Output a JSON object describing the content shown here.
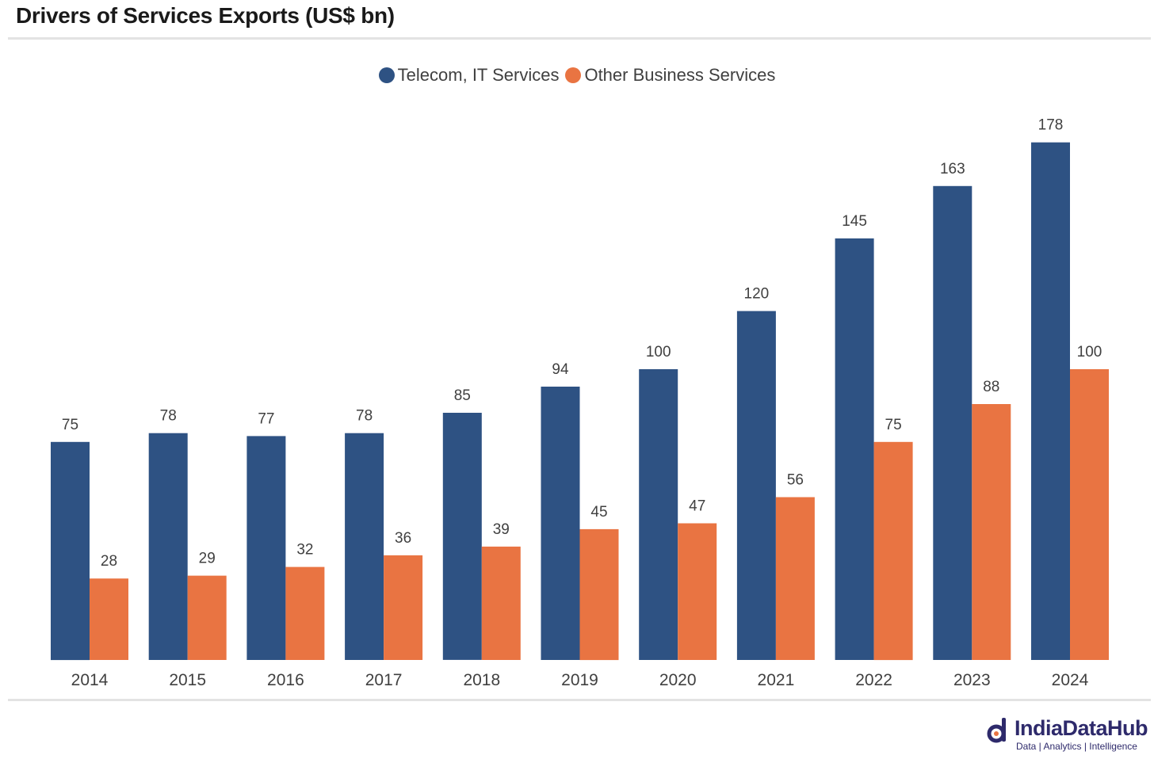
{
  "title": "Drivers of Services Exports (US$ bn)",
  "brand": {
    "name": "IndiaDataHub",
    "tagline": "Data | Analytics | Intelligence",
    "color": "#2e2a6b"
  },
  "chart_data": {
    "type": "bar",
    "title": "Drivers of Services Exports (US$ bn)",
    "xlabel": "",
    "ylabel": "",
    "ylim": [
      0,
      190
    ],
    "grid": false,
    "legend_position": "top-center",
    "categories": [
      "2014",
      "2015",
      "2016",
      "2017",
      "2018",
      "2019",
      "2020",
      "2021",
      "2022",
      "2023",
      "2024"
    ],
    "series": [
      {
        "name": "Telecom, IT Services",
        "color": "#2e5283",
        "values": [
          75,
          78,
          77,
          78,
          85,
          94,
          100,
          120,
          145,
          163,
          178
        ]
      },
      {
        "name": "Other Business Services",
        "color": "#e97442",
        "values": [
          28,
          29,
          32,
          36,
          39,
          45,
          47,
          56,
          75,
          88,
          100
        ]
      }
    ]
  }
}
